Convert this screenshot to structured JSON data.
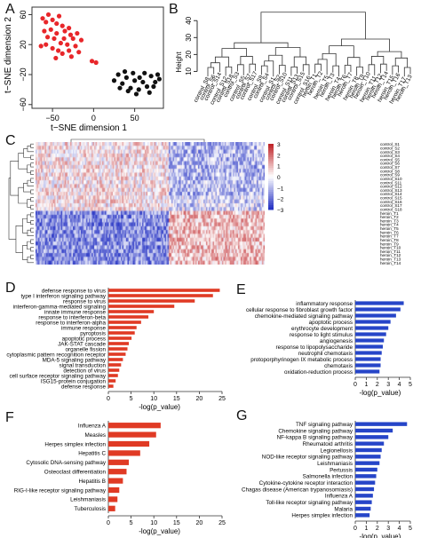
{
  "panels": {
    "A": "A",
    "B": "B",
    "C": "C",
    "D": "D",
    "E": "E",
    "F": "F",
    "G": "G"
  },
  "tsne": {
    "xlabel": "t−SNE dimension 1",
    "ylabel": "t−SNE dimension 2",
    "xticks": [
      "−50",
      "0",
      "50"
    ],
    "yticks": [
      "−60",
      "−20",
      "20",
      "60"
    ],
    "xlim": [
      -75,
      85
    ],
    "ylim": [
      -65,
      70
    ],
    "colors": {
      "control": "#e8262a",
      "heroin": "#111111"
    },
    "red_points": [
      [
        -62,
        55
      ],
      [
        -58,
        50
      ],
      [
        -55,
        60
      ],
      [
        -50,
        53
      ],
      [
        -45,
        48
      ],
      [
        -42,
        58
      ],
      [
        -38,
        45
      ],
      [
        -35,
        38
      ],
      [
        -30,
        42
      ],
      [
        -28,
        33
      ],
      [
        -60,
        38
      ],
      [
        -56,
        30
      ],
      [
        -52,
        40
      ],
      [
        -48,
        28
      ],
      [
        -45,
        35
      ],
      [
        -40,
        22
      ],
      [
        -36,
        28
      ],
      [
        -32,
        20
      ],
      [
        -25,
        28
      ],
      [
        -20,
        35
      ],
      [
        -64,
        18
      ],
      [
        -58,
        20
      ],
      [
        -50,
        15
      ],
      [
        -43,
        12
      ],
      [
        -38,
        8
      ],
      [
        -30,
        12
      ],
      [
        -22,
        18
      ],
      [
        -18,
        10
      ],
      [
        -2,
        -2
      ],
      [
        3,
        -4
      ],
      [
        -15,
        26
      ],
      [
        -27,
        4
      ],
      [
        -46,
        2
      ]
    ],
    "black_points": [
      [
        25,
        -28
      ],
      [
        30,
        -20
      ],
      [
        35,
        -32
      ],
      [
        40,
        -24
      ],
      [
        45,
        -38
      ],
      [
        50,
        -28
      ],
      [
        55,
        -40
      ],
      [
        60,
        -30
      ],
      [
        65,
        -36
      ],
      [
        70,
        -22
      ],
      [
        75,
        -30
      ],
      [
        78,
        -20
      ],
      [
        42,
        -42
      ],
      [
        56,
        -24
      ],
      [
        68,
        -44
      ],
      [
        73,
        -36
      ],
      [
        32,
        -38
      ],
      [
        48,
        -18
      ],
      [
        62,
        -18
      ],
      [
        80,
        -26
      ],
      [
        38,
        -16
      ],
      [
        52,
        -46
      ]
    ]
  },
  "dendrogram": {
    "ylabel": "Height",
    "yticks": [
      "10",
      "20",
      "30",
      "40"
    ],
    "ylim": [
      5,
      48
    ],
    "left_labels": [
      "control_S8",
      "control_S6",
      "control_S14",
      "control_S12",
      "control_S18",
      "control_S3",
      "control_S5",
      "control_S7",
      "control_S17",
      "control_S9",
      "control_S4",
      "control_S1",
      "control_S2",
      "control_S10",
      "control_S11",
      "control_S13",
      "control_S15",
      "control_S16"
    ],
    "right_labels": [
      "heroin_T1",
      "heroin_T2",
      "heroin_T5",
      "heroin_T3",
      "heroin_T4",
      "heroin_T6",
      "heroin_T7",
      "heroin_T8",
      "heroin_T9",
      "heroin_T10",
      "heroin_T11",
      "heroin_T12",
      "heroin_T14",
      "heroin_T15",
      "heroin_T16",
      "heroin_T17",
      "heroin_T13"
    ]
  },
  "heatmap": {
    "legend_ticks": [
      "3",
      "2",
      "1",
      "0",
      "−1",
      "−2",
      "−3"
    ],
    "row_labels": [
      "control_S1",
      "control_S2",
      "control_S3",
      "control_S4",
      "control_S5",
      "control_S6",
      "control_S7",
      "control_S8",
      "control_S9",
      "control_S10",
      "control_S11",
      "control_S12",
      "control_S13",
      "control_S14",
      "control_S15",
      "control_S16",
      "control_S17",
      "control_S18",
      "heroin_T1",
      "heroin_T2",
      "heroin_T3",
      "heroin_T4",
      "heroin_T5",
      "heroin_T6",
      "heroin_T7",
      "heroin_T8",
      "heroin_T9",
      "heroin_T10",
      "heroin_T11",
      "heroin_T12",
      "heroin_T13",
      "heroin_T14"
    ],
    "colors": {
      "high": "#c0262a",
      "mid": "#ffffff",
      "low": "#2633c4"
    }
  },
  "chart_data": [
    {
      "type": "bar",
      "panel": "D",
      "categories": [
        "defense response to virus",
        "type I interferon signaling pathway",
        "response to virus",
        "interferon-gamma-mediated signaling",
        "innate immune response",
        "response to interferon-beta",
        "response to interferon-alpha",
        "immune response",
        "pyroptosis",
        "apoptotic process",
        "JAK-STAT cascade",
        "organelle fission",
        "cytoplasmic pattern recognition receptor",
        "MDA-5 signaling pathway",
        "signal transduction",
        "detection of virus",
        "cell surface receptor signaling pathway",
        "ISG15-protein conjugation",
        "defense response"
      ],
      "values": [
        24.5,
        23,
        19,
        14.5,
        10,
        8.8,
        7.2,
        6.2,
        5.8,
        5.1,
        4.5,
        4.2,
        3.8,
        3.2,
        2.8,
        2.4,
        2.1,
        1.6,
        1.1
      ],
      "xlabel": "-log(p_value)",
      "xticks": [
        "0",
        "5",
        "10",
        "15",
        "20",
        "25"
      ],
      "xlim": [
        0,
        25
      ],
      "color": "#e03a24"
    },
    {
      "type": "bar",
      "panel": "E",
      "categories": [
        "inflammatory response",
        "cellular response to fibroblast growth factor",
        "chemokine-mediated signaling pathway",
        "apoptotic process",
        "erythrocyte development",
        "response to light stimulus",
        "angiogenesis",
        "response to lipopolysaccharide",
        "neutrophil chemotaxis",
        "protoporphyrinogen IX metabolic process",
        "chemotaxis",
        "oxidation-reduction process"
      ],
      "values": [
        4.4,
        4.1,
        3.7,
        3.2,
        3.0,
        2.8,
        2.6,
        2.5,
        2.4,
        2.3,
        2.3,
        2.2
      ],
      "xlabel": "-log(p_value)",
      "xticks": [
        "0",
        "1",
        "2",
        "3",
        "4",
        "5"
      ],
      "xlim": [
        0,
        5
      ],
      "color": "#2645c8"
    },
    {
      "type": "bar",
      "panel": "F",
      "categories": [
        "Influenza A",
        "Measles",
        "Herpes simplex infection",
        "Hepatitis C",
        "Cytosolic DNA-sensing pathway",
        "Osteoclast differentiation",
        "Hepatitis B",
        "RIG-I-like receptor signaling pathway",
        "Leishmaniasis",
        "Tuberculosis"
      ],
      "values": [
        11.5,
        10.5,
        9,
        7,
        4.5,
        4,
        3.2,
        2.4,
        2,
        1.5
      ],
      "xlabel": "-log(p_value)",
      "xticks": [
        "0",
        "5",
        "10",
        "15",
        "20",
        "25"
      ],
      "xlim": [
        0,
        25
      ],
      "color": "#e03a24"
    },
    {
      "type": "bar",
      "panel": "G",
      "categories": [
        "TNF signaling pathway",
        "Chemokine signaling pathway",
        "NF-kappa B signaling pathway",
        "Rheumatoid arthritis",
        "Legionellosis",
        "NOD-like receptor signaling pathway",
        "Leishmaniasis",
        "Pertussis",
        "Salmonella infection",
        "Cytokine-cytokine receptor interaction",
        "Chagas disease (American trypanosomiasis)",
        "Influenza A",
        "Toll-like receptor signaling pathway",
        "Malaria",
        "Herpes simplex infection"
      ],
      "values": [
        4.7,
        3.4,
        3.0,
        2.6,
        2.4,
        2.3,
        2.2,
        2.0,
        1.9,
        1.8,
        1.7,
        1.6,
        1.5,
        1.4,
        1.3
      ],
      "xlabel": "-log(p_value)",
      "xticks": [
        "0",
        "1",
        "2",
        "3",
        "4",
        "5"
      ],
      "xlim": [
        0,
        5
      ],
      "color": "#2645c8"
    }
  ]
}
